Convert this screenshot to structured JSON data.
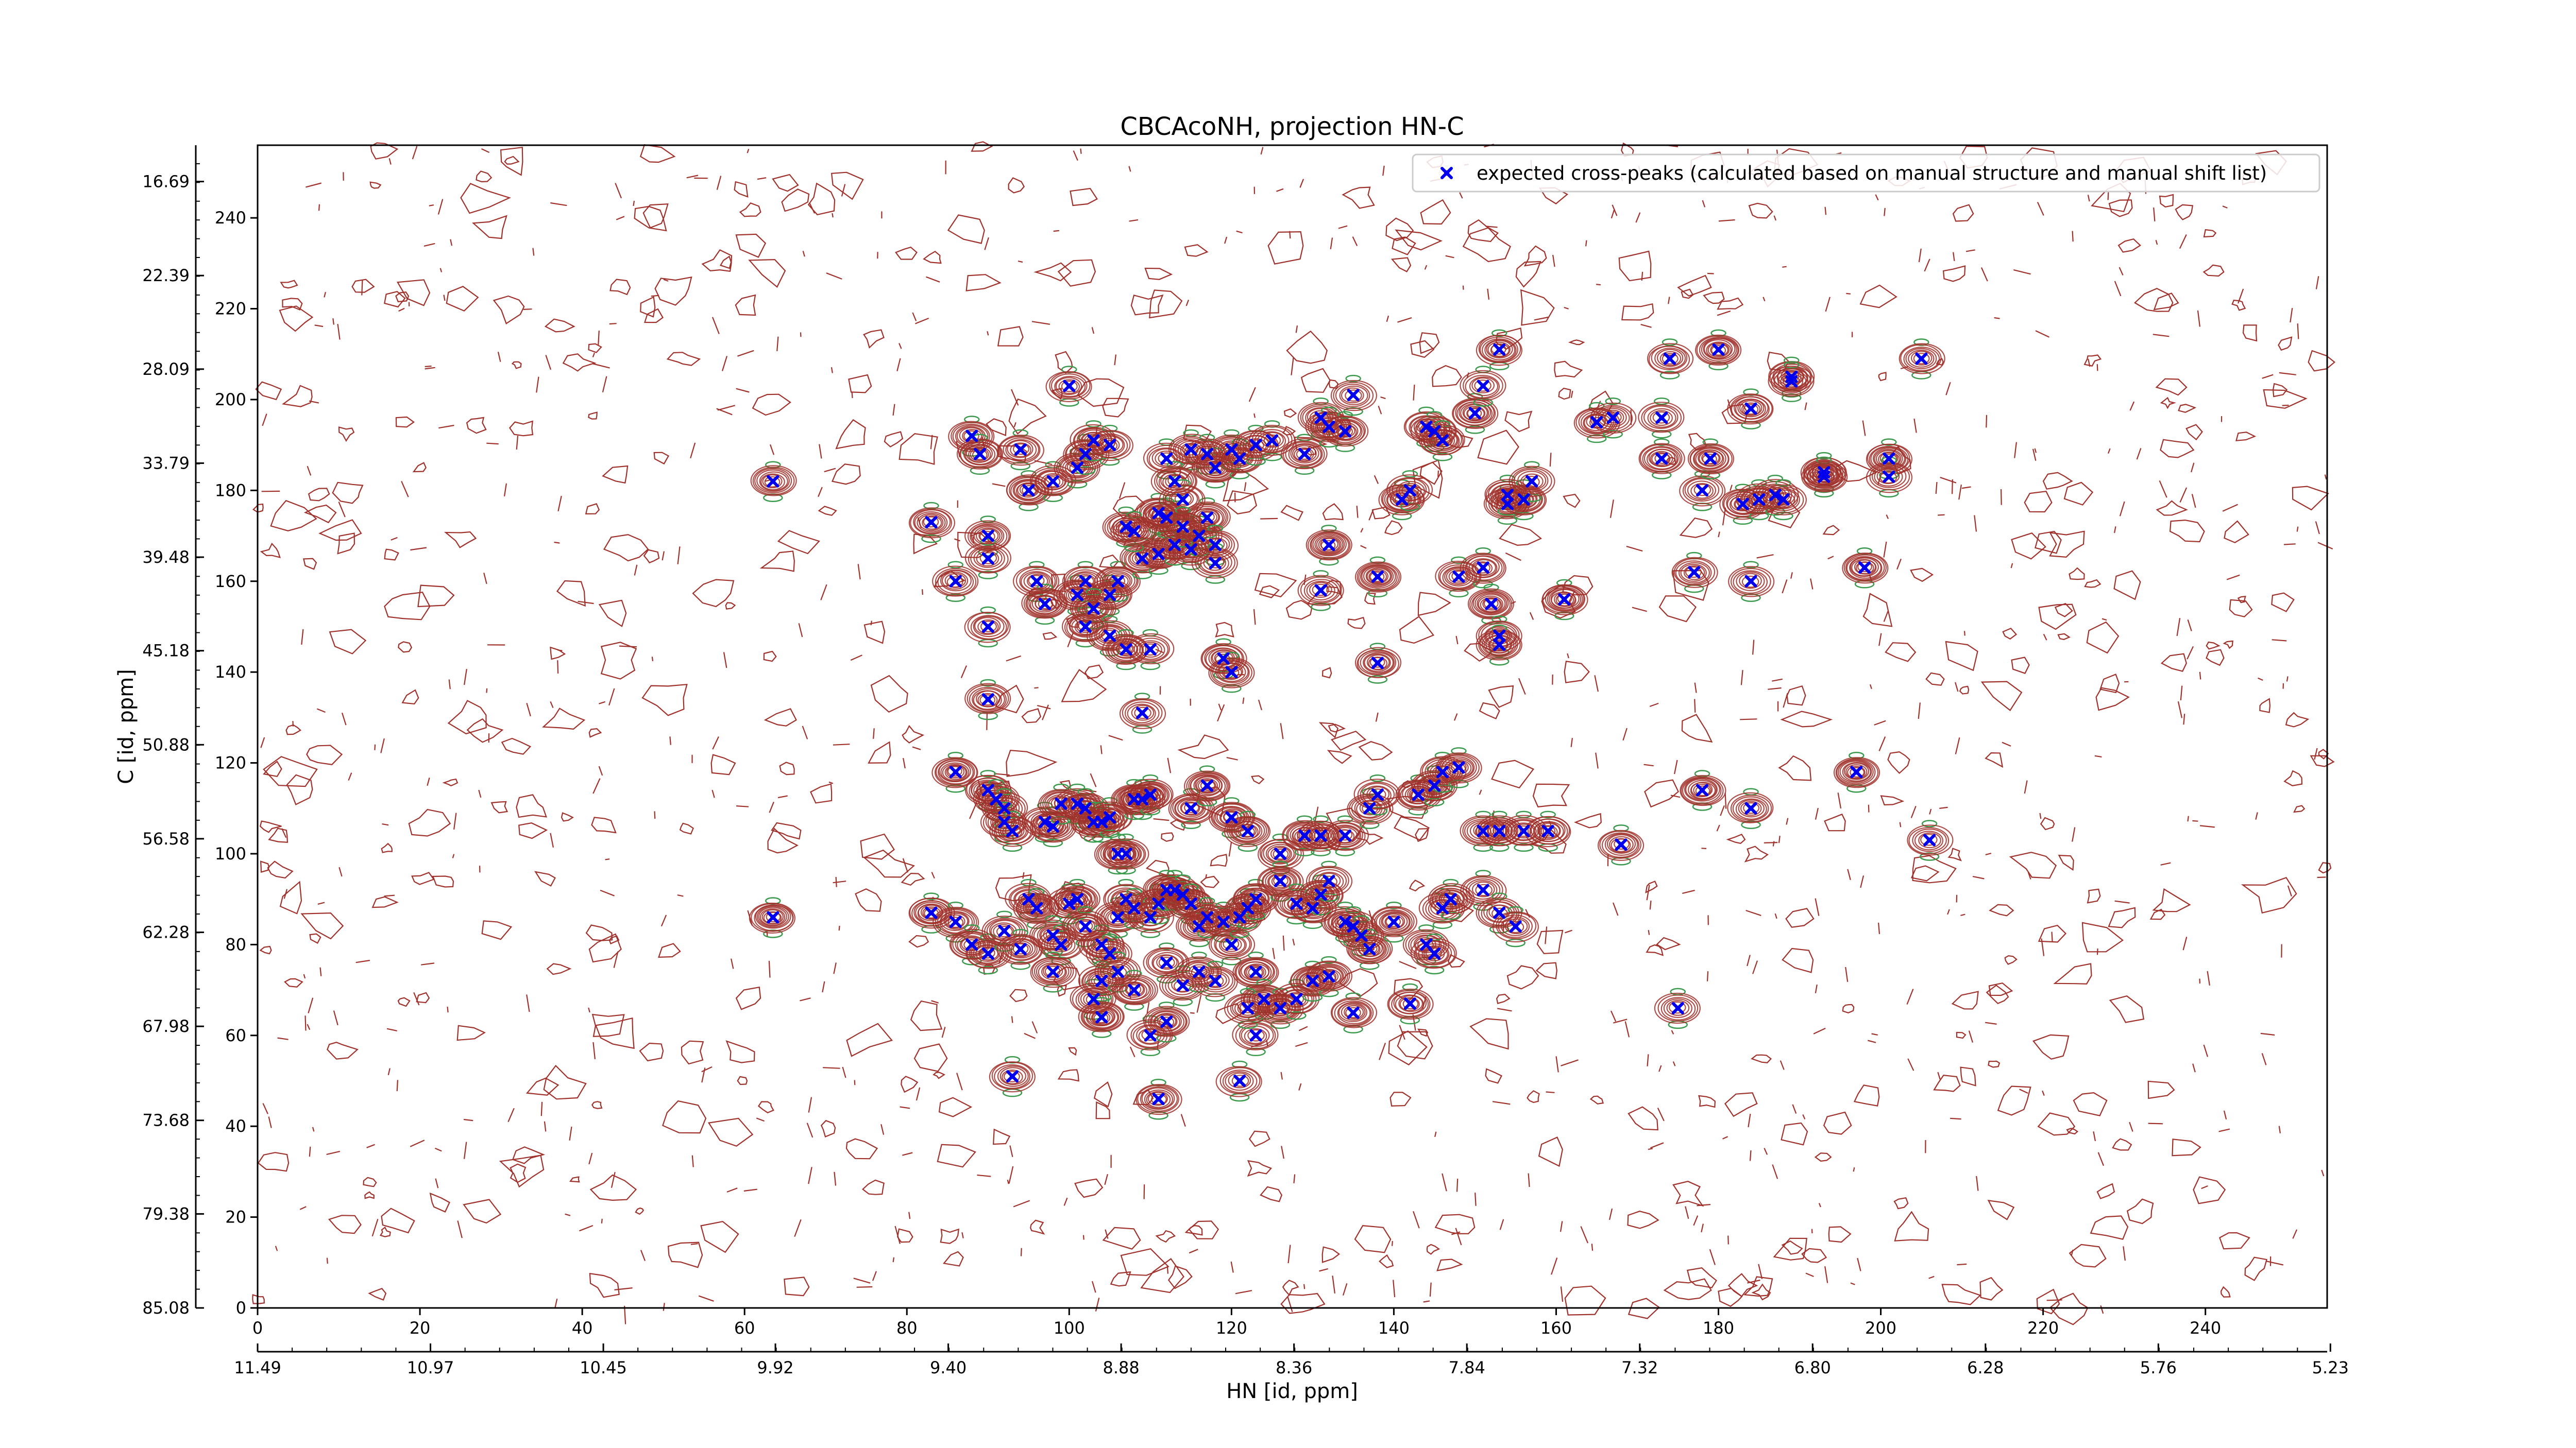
{
  "chart_data": {
    "type": "scatter",
    "title": "CBCAcoNH, projection HN-C",
    "xlabel": "HN [id, ppm]",
    "ylabel": "C [id, ppm]",
    "xlim": [
      0,
      255
    ],
    "ylim": [
      0,
      256
    ],
    "x_ticks": [
      0,
      20,
      40,
      60,
      80,
      100,
      120,
      140,
      160,
      180,
      200,
      220,
      240
    ],
    "y_ticks": [
      0,
      20,
      40,
      60,
      80,
      100,
      120,
      140,
      160,
      180,
      200,
      220,
      240
    ],
    "x_ppm_ticks": [
      {
        "pos": 0,
        "label": "11.49"
      },
      {
        "pos": 21.3,
        "label": "10.97"
      },
      {
        "pos": 42.6,
        "label": "10.45"
      },
      {
        "pos": 63.8,
        "label": "9.92"
      },
      {
        "pos": 85.1,
        "label": "9.40"
      },
      {
        "pos": 106.4,
        "label": "8.88"
      },
      {
        "pos": 127.7,
        "label": "8.36"
      },
      {
        "pos": 149.0,
        "label": "7.84"
      },
      {
        "pos": 170.3,
        "label": "7.32"
      },
      {
        "pos": 191.6,
        "label": "6.80"
      },
      {
        "pos": 212.9,
        "label": "6.28"
      },
      {
        "pos": 234.2,
        "label": "5.76"
      },
      {
        "pos": 255.4,
        "label": "5.23"
      }
    ],
    "y_ppm_ticks": [
      {
        "pos": 0,
        "label": "85.08"
      },
      {
        "pos": 20.7,
        "label": "79.38"
      },
      {
        "pos": 41.3,
        "label": "73.68"
      },
      {
        "pos": 62.0,
        "label": "67.98"
      },
      {
        "pos": 82.7,
        "label": "62.28"
      },
      {
        "pos": 103.3,
        "label": "56.58"
      },
      {
        "pos": 124.0,
        "label": "50.88"
      },
      {
        "pos": 144.7,
        "label": "45.18"
      },
      {
        "pos": 165.3,
        "label": "39.48"
      },
      {
        "pos": 186.0,
        "label": "33.79"
      },
      {
        "pos": 206.7,
        "label": "28.09"
      },
      {
        "pos": 227.3,
        "label": "22.39"
      },
      {
        "pos": 248.0,
        "label": "16.69"
      }
    ],
    "legend": {
      "placement": "top-right",
      "label": "expected cross-peaks (calculated based on manual structure and manual shift list)"
    },
    "colors": {
      "positive_contour": "#a0302a",
      "negative_contour": "#3a9a4c",
      "marker": "#0000ee"
    },
    "series": [
      {
        "name": "expected cross-peaks (calculated based on manual structure and manual shift list)",
        "marker": "x",
        "points": [
          [
            63.5,
            182
          ],
          [
            100,
            203
          ],
          [
            88,
            192
          ],
          [
            89,
            188
          ],
          [
            94,
            189
          ],
          [
            95,
            180
          ],
          [
            98,
            182
          ],
          [
            101,
            185
          ],
          [
            102,
            188
          ],
          [
            103,
            191
          ],
          [
            105,
            190
          ],
          [
            112,
            187
          ],
          [
            115,
            189
          ],
          [
            117,
            188
          ],
          [
            118,
            185
          ],
          [
            120,
            189
          ],
          [
            121,
            187
          ],
          [
            123,
            190
          ],
          [
            125,
            191
          ],
          [
            129,
            188
          ],
          [
            131,
            196
          ],
          [
            132,
            194
          ],
          [
            134,
            193
          ],
          [
            135,
            201
          ],
          [
            141,
            178
          ],
          [
            142,
            180
          ],
          [
            144,
            194
          ],
          [
            145,
            193
          ],
          [
            146,
            191
          ],
          [
            150,
            197
          ],
          [
            151,
            203
          ],
          [
            153,
            211
          ],
          [
            154,
            177
          ],
          [
            154,
            179
          ],
          [
            156,
            178
          ],
          [
            157,
            182
          ],
          [
            165,
            195
          ],
          [
            167,
            196
          ],
          [
            173,
            187
          ],
          [
            173,
            196
          ],
          [
            174,
            209
          ],
          [
            178,
            180
          ],
          [
            179,
            187
          ],
          [
            180,
            211
          ],
          [
            183,
            177
          ],
          [
            184,
            198
          ],
          [
            185,
            178
          ],
          [
            187,
            179
          ],
          [
            188,
            178
          ],
          [
            189,
            205
          ],
          [
            189,
            204
          ],
          [
            193,
            184
          ],
          [
            193,
            183
          ],
          [
            201,
            187
          ],
          [
            201,
            183
          ],
          [
            205,
            209
          ],
          [
            83,
            173
          ],
          [
            86,
            160
          ],
          [
            90,
            170
          ],
          [
            90,
            165
          ],
          [
            96,
            160
          ],
          [
            97,
            155
          ],
          [
            101,
            157
          ],
          [
            102,
            160
          ],
          [
            105,
            157
          ],
          [
            106,
            160
          ],
          [
            109,
            165
          ],
          [
            111,
            166
          ],
          [
            113,
            168
          ],
          [
            115,
            167
          ],
          [
            116,
            170
          ],
          [
            117,
            174
          ],
          [
            118,
            168
          ],
          [
            118,
            164
          ],
          [
            111,
            175
          ],
          [
            112,
            174
          ],
          [
            113,
            182
          ],
          [
            114,
            178
          ],
          [
            114,
            172
          ],
          [
            107,
            172
          ],
          [
            108,
            171
          ],
          [
            90,
            150
          ],
          [
            102,
            150
          ],
          [
            103,
            154
          ],
          [
            105,
            148
          ],
          [
            107,
            145
          ],
          [
            110,
            145
          ],
          [
            119,
            143
          ],
          [
            120,
            140
          ],
          [
            131,
            158
          ],
          [
            132,
            168
          ],
          [
            138,
            142
          ],
          [
            138,
            161
          ],
          [
            152,
            155
          ],
          [
            153,
            148
          ],
          [
            153,
            146
          ],
          [
            161,
            156
          ],
          [
            148,
            161
          ],
          [
            151,
            163
          ],
          [
            177,
            162
          ],
          [
            184,
            160
          ],
          [
            198,
            163
          ],
          [
            90,
            134
          ],
          [
            109,
            131
          ],
          [
            86,
            118
          ],
          [
            90,
            114
          ],
          [
            91,
            112
          ],
          [
            92,
            110
          ],
          [
            92,
            107
          ],
          [
            93,
            105
          ],
          [
            97,
            107
          ],
          [
            98,
            106
          ],
          [
            99,
            111
          ],
          [
            101,
            111
          ],
          [
            102,
            110
          ],
          [
            103,
            107
          ],
          [
            104,
            107
          ],
          [
            105,
            108
          ],
          [
            106,
            100
          ],
          [
            107,
            100
          ],
          [
            108,
            112
          ],
          [
            109,
            112
          ],
          [
            110,
            113
          ],
          [
            115,
            110
          ],
          [
            117,
            115
          ],
          [
            120,
            108
          ],
          [
            122,
            105
          ],
          [
            126,
            100
          ],
          [
            129,
            104
          ],
          [
            131,
            104
          ],
          [
            134,
            104
          ],
          [
            137,
            110
          ],
          [
            138,
            113
          ],
          [
            143,
            113
          ],
          [
            145,
            115
          ],
          [
            146,
            118
          ],
          [
            148,
            119
          ],
          [
            151,
            105
          ],
          [
            153,
            105
          ],
          [
            156,
            105
          ],
          [
            159,
            105
          ],
          [
            168,
            102
          ],
          [
            178,
            114
          ],
          [
            184,
            110
          ],
          [
            197,
            118
          ],
          [
            206,
            103
          ],
          [
            63.5,
            86
          ],
          [
            83,
            87
          ],
          [
            86,
            85
          ],
          [
            88,
            80
          ],
          [
            90,
            78
          ],
          [
            92,
            83
          ],
          [
            94,
            79
          ],
          [
            95,
            90
          ],
          [
            96,
            88
          ],
          [
            98,
            82
          ],
          [
            99,
            80
          ],
          [
            100,
            89
          ],
          [
            101,
            90
          ],
          [
            102,
            84
          ],
          [
            104,
            80
          ],
          [
            105,
            78
          ],
          [
            106,
            86
          ],
          [
            107,
            90
          ],
          [
            108,
            88
          ],
          [
            110,
            86
          ],
          [
            111,
            89
          ],
          [
            112,
            92
          ],
          [
            113,
            92
          ],
          [
            114,
            91
          ],
          [
            115,
            89
          ],
          [
            116,
            84
          ],
          [
            117,
            86
          ],
          [
            119,
            85
          ],
          [
            120,
            80
          ],
          [
            121,
            86
          ],
          [
            122,
            88
          ],
          [
            123,
            90
          ],
          [
            126,
            94
          ],
          [
            128,
            89
          ],
          [
            130,
            88
          ],
          [
            131,
            91
          ],
          [
            132,
            94
          ],
          [
            134,
            85
          ],
          [
            135,
            84
          ],
          [
            136,
            82
          ],
          [
            137,
            79
          ],
          [
            140,
            85
          ],
          [
            144,
            80
          ],
          [
            145,
            78
          ],
          [
            146,
            88
          ],
          [
            147,
            90
          ],
          [
            151,
            92
          ],
          [
            153,
            87
          ],
          [
            155,
            84
          ],
          [
            98,
            74
          ],
          [
            103,
            68
          ],
          [
            104,
            72
          ],
          [
            106,
            74
          ],
          [
            108,
            70
          ],
          [
            112,
            76
          ],
          [
            114,
            71
          ],
          [
            116,
            74
          ],
          [
            118,
            72
          ],
          [
            123,
            74
          ],
          [
            124,
            68
          ],
          [
            126,
            66
          ],
          [
            128,
            68
          ],
          [
            130,
            72
          ],
          [
            132,
            73
          ],
          [
            135,
            65
          ],
          [
            142,
            67
          ],
          [
            123,
            60
          ],
          [
            122,
            66
          ],
          [
            110,
            60
          ],
          [
            112,
            63
          ],
          [
            104,
            64
          ],
          [
            175,
            66
          ],
          [
            93,
            51
          ],
          [
            111,
            46
          ],
          [
            121,
            50
          ]
        ]
      }
    ]
  }
}
